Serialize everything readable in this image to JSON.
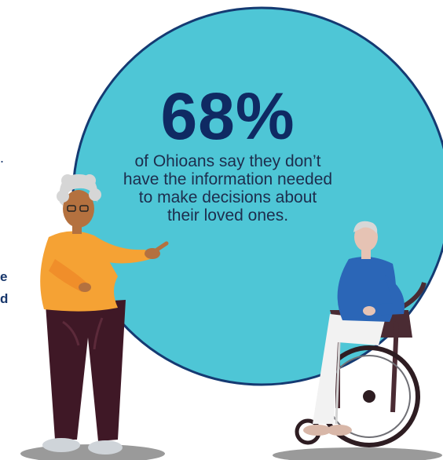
{
  "infographic": {
    "stat_value": "68%",
    "stat_caption_lines": [
      "of Ohioans say they don’t",
      "have the information needed",
      "to make decisions about",
      "their loved ones."
    ]
  },
  "cropped_text": {
    "punct": ".",
    "bold_line_1": "e",
    "bold_line_2": "d"
  },
  "colors": {
    "circle_fill": "#4ec6d6",
    "circle_stroke": "#153a72",
    "heading": "#0f2a63",
    "shadow": "#9a9a9a"
  },
  "icons": [
    "standing-woman-illustration",
    "wheelchair-man-illustration"
  ]
}
